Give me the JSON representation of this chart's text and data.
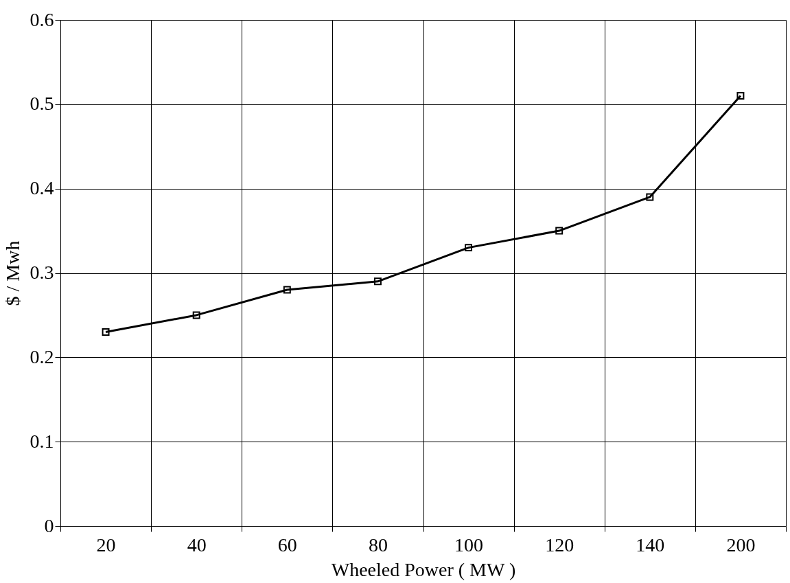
{
  "chart_data": {
    "type": "line",
    "xlabel": "Wheeled Power ( MW )",
    "ylabel": "$ / Mwh",
    "categories": [
      "20",
      "40",
      "60",
      "80",
      "100",
      "120",
      "140",
      "200"
    ],
    "series": [
      {
        "color": "#000000",
        "values": [
          0.23,
          0.25,
          0.28,
          0.29,
          0.33,
          0.35,
          0.39,
          0.51
        ]
      }
    ],
    "ylim": [
      0,
      0.6
    ],
    "yticks": [
      0,
      0.1,
      0.2,
      0.3,
      0.4,
      0.5,
      0.6
    ],
    "grid": true,
    "marker": "square",
    "line_style": "solid"
  }
}
